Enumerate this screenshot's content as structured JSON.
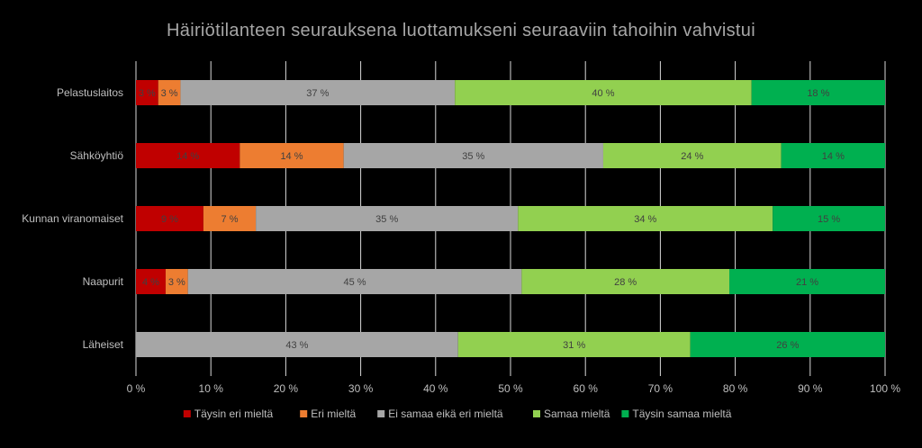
{
  "chart_data": {
    "type": "bar",
    "orientation": "horizontal",
    "stacked": "percent",
    "title": "Häiriötilanteen seurauksena luottamukseni seuraaviin tahoihin vahvistui",
    "categories": [
      "Pelastuslaitos",
      "Sähköyhtiö",
      "Kunnan viranomaiset",
      "Naapurit",
      "Läheiset"
    ],
    "series": [
      {
        "name": "Täysin eri mieltä",
        "color": "#c00000",
        "values": [
          3,
          14,
          9,
          4,
          0
        ],
        "labels": [
          "3 %",
          "14 %",
          "9 %",
          "4 %",
          ""
        ]
      },
      {
        "name": "Eri mieltä",
        "color": "#ed7d31",
        "values": [
          3,
          14,
          7,
          3,
          0
        ],
        "labels": [
          "3 %",
          "14 %",
          "7 %",
          "3 %",
          ""
        ]
      },
      {
        "name": "Ei samaa eikä eri mieltä",
        "color": "#a6a6a6",
        "values": [
          37,
          35,
          35,
          45,
          43
        ],
        "labels": [
          "37 %",
          "35 %",
          "35 %",
          "45 %",
          "43 %"
        ]
      },
      {
        "name": "Samaa mieltä",
        "color": "#92d050",
        "values": [
          40,
          24,
          34,
          28,
          31
        ],
        "labels": [
          "40 %",
          "24 %",
          "34 %",
          "28 %",
          "31 %"
        ]
      },
      {
        "name": "Täysin samaa mieltä",
        "color": "#00b050",
        "values": [
          18,
          14,
          15,
          21,
          26
        ],
        "labels": [
          "18 %",
          "14 %",
          "15 %",
          "21 %",
          "26 %"
        ]
      }
    ],
    "xlim": [
      0,
      100
    ],
    "xticks": [
      "0 %",
      "10 %",
      "20 %",
      "30 %",
      "40 %",
      "50 %",
      "60 %",
      "70 %",
      "80 %",
      "90 %",
      "100 %"
    ],
    "grid": true,
    "legend": "bottom"
  }
}
